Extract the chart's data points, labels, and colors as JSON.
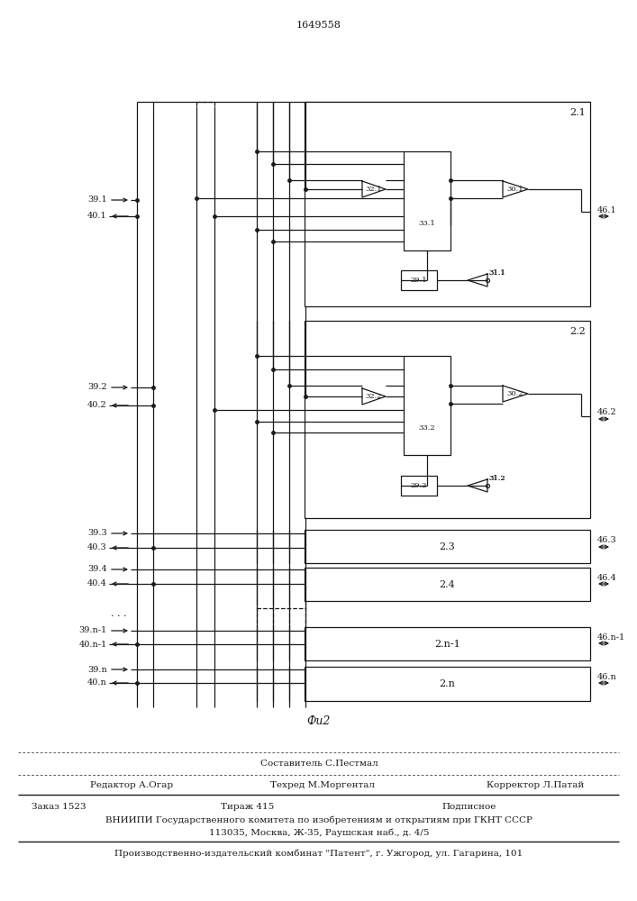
{
  "title": "1649558",
  "fig_label": "Фи2",
  "bg": "#ffffff",
  "lc": "#1a1a1a",
  "footer": {
    "c1": "Составитель С.Пестмал",
    "l2": "Редактор А.Огар",
    "c2": "Техред М.Моргентал",
    "r2": "Корректор Л.Патай",
    "l3": "Заказ 1523",
    "c3": "Тираж 415",
    "r3": "Подписное",
    "r4": "ВНИИПИ Государственного комитета по изобретениям и открытиям при ГКНТ СССР",
    "r5": "113035, Москва, Ж-35, Раушская наб., д. 4/5",
    "r6": "Производственно-издательский комбинат \"Патент\", г. Ужгород, ул. Гагарина, 101"
  }
}
